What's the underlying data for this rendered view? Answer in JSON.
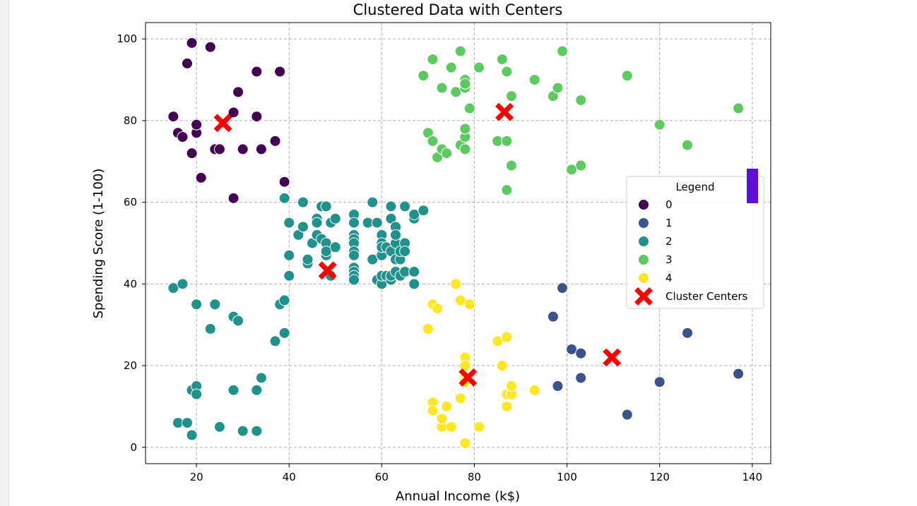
{
  "chart_data": {
    "type": "scatter",
    "title": "Clustered Data with Centers",
    "xlabel": "Annual Income (k$)",
    "ylabel": "Spending Score (1-100)",
    "xlim": [
      9,
      144
    ],
    "ylim": [
      -4,
      104
    ],
    "xticks": [
      20,
      40,
      60,
      80,
      100,
      120,
      140
    ],
    "yticks": [
      0,
      20,
      40,
      60,
      80,
      100
    ],
    "grid": true,
    "legend": {
      "title": "Legend",
      "placement": "center-right"
    },
    "series": [
      {
        "name": "0",
        "color": "#440154",
        "points": [
          [
            15,
            81
          ],
          [
            16,
            77
          ],
          [
            17,
            76
          ],
          [
            18,
            94
          ],
          [
            19,
            72
          ],
          [
            19,
            99
          ],
          [
            20,
            77
          ],
          [
            20,
            79
          ],
          [
            21,
            66
          ],
          [
            23,
            98
          ],
          [
            24,
            73
          ],
          [
            25,
            73
          ],
          [
            28,
            82
          ],
          [
            28,
            61
          ],
          [
            29,
            87
          ],
          [
            30,
            73
          ],
          [
            33,
            92
          ],
          [
            33,
            81
          ],
          [
            34,
            73
          ],
          [
            37,
            75
          ],
          [
            38,
            92
          ],
          [
            39,
            65
          ]
        ]
      },
      {
        "name": "1",
        "color": "#3b528b",
        "points": [
          [
            97,
            32
          ],
          [
            98,
            15
          ],
          [
            99,
            39
          ],
          [
            101,
            24
          ],
          [
            103,
            23
          ],
          [
            103,
            17
          ],
          [
            113,
            8
          ],
          [
            120,
            16
          ],
          [
            126,
            28
          ],
          [
            137,
            18
          ]
        ]
      },
      {
        "name": "2",
        "color": "#21918c",
        "points": [
          [
            15,
            39
          ],
          [
            16,
            6
          ],
          [
            17,
            40
          ],
          [
            18,
            6
          ],
          [
            19,
            3
          ],
          [
            19,
            14
          ],
          [
            20,
            15
          ],
          [
            20,
            13
          ],
          [
            20,
            35
          ],
          [
            23,
            29
          ],
          [
            24,
            35
          ],
          [
            25,
            5
          ],
          [
            28,
            14
          ],
          [
            28,
            32
          ],
          [
            29,
            31
          ],
          [
            30,
            4
          ],
          [
            33,
            4
          ],
          [
            33,
            14
          ],
          [
            34,
            17
          ],
          [
            37,
            26
          ],
          [
            38,
            35
          ],
          [
            39,
            36
          ],
          [
            39,
            28
          ],
          [
            39,
            61
          ],
          [
            40,
            55
          ],
          [
            40,
            47
          ],
          [
            40,
            42
          ],
          [
            42,
            52
          ],
          [
            43,
            60
          ],
          [
            43,
            54
          ],
          [
            44,
            45
          ],
          [
            44,
            46
          ],
          [
            45,
            50
          ],
          [
            46,
            56
          ],
          [
            46,
            55
          ],
          [
            46,
            52
          ],
          [
            47,
            59
          ],
          [
            47,
            51
          ],
          [
            48,
            59
          ],
          [
            48,
            50
          ],
          [
            48,
            47
          ],
          [
            48,
            48
          ],
          [
            49,
            42
          ],
          [
            49,
            55
          ],
          [
            50,
            56
          ],
          [
            50,
            49
          ],
          [
            54,
            57
          ],
          [
            54,
            55
          ],
          [
            54,
            52
          ],
          [
            54,
            51
          ],
          [
            54,
            50
          ],
          [
            54,
            48
          ],
          [
            54,
            47
          ],
          [
            54,
            44
          ],
          [
            54,
            43
          ],
          [
            54,
            42
          ],
          [
            54,
            41
          ],
          [
            57,
            55
          ],
          [
            58,
            60
          ],
          [
            58,
            46
          ],
          [
            59,
            55
          ],
          [
            59,
            41
          ],
          [
            60,
            40
          ],
          [
            60,
            42
          ],
          [
            60,
            52
          ],
          [
            60,
            47
          ],
          [
            60,
            50
          ],
          [
            60,
            49
          ],
          [
            61,
            42
          ],
          [
            61,
            49
          ],
          [
            62,
            41
          ],
          [
            62,
            59
          ],
          [
            62,
            56
          ],
          [
            62,
            48
          ],
          [
            62,
            42
          ],
          [
            63,
            43
          ],
          [
            63,
            54
          ],
          [
            63,
            50
          ],
          [
            63,
            46
          ],
          [
            63,
            52
          ],
          [
            64,
            42
          ],
          [
            64,
            46
          ],
          [
            64,
            48
          ],
          [
            65,
            50
          ],
          [
            65,
            59
          ],
          [
            65,
            43
          ],
          [
            65,
            48
          ],
          [
            67,
            56
          ],
          [
            67,
            40
          ],
          [
            67,
            57
          ],
          [
            67,
            43
          ],
          [
            69,
            58
          ]
        ]
      },
      {
        "name": "3",
        "color": "#5ec962",
        "points": [
          [
            69,
            91
          ],
          [
            70,
            77
          ],
          [
            71,
            95
          ],
          [
            71,
            75
          ],
          [
            72,
            71
          ],
          [
            73,
            88
          ],
          [
            73,
            73
          ],
          [
            74,
            72
          ],
          [
            75,
            93
          ],
          [
            76,
            87
          ],
          [
            77,
            97
          ],
          [
            77,
            74
          ],
          [
            78,
            90
          ],
          [
            78,
            88
          ],
          [
            78,
            76
          ],
          [
            78,
            89
          ],
          [
            78,
            78
          ],
          [
            78,
            73
          ],
          [
            79,
            83
          ],
          [
            81,
            93
          ],
          [
            85,
            75
          ],
          [
            86,
            95
          ],
          [
            87,
            63
          ],
          [
            87,
            75
          ],
          [
            87,
            92
          ],
          [
            88,
            86
          ],
          [
            88,
            69
          ],
          [
            93,
            90
          ],
          [
            97,
            86
          ],
          [
            98,
            88
          ],
          [
            99,
            97
          ],
          [
            101,
            68
          ],
          [
            103,
            85
          ],
          [
            103,
            69
          ],
          [
            113,
            91
          ],
          [
            120,
            79
          ],
          [
            126,
            74
          ],
          [
            137,
            83
          ]
        ]
      },
      {
        "name": "4",
        "color": "#fde725",
        "points": [
          [
            70,
            29
          ],
          [
            71,
            35
          ],
          [
            71,
            11
          ],
          [
            71,
            9
          ],
          [
            72,
            34
          ],
          [
            73,
            5
          ],
          [
            73,
            7
          ],
          [
            74,
            10
          ],
          [
            75,
            5
          ],
          [
            76,
            40
          ],
          [
            77,
            12
          ],
          [
            77,
            36
          ],
          [
            78,
            22
          ],
          [
            78,
            17
          ],
          [
            78,
            20
          ],
          [
            78,
            16
          ],
          [
            78,
            1
          ],
          [
            79,
            35
          ],
          [
            81,
            5
          ],
          [
            85,
            26
          ],
          [
            86,
            20
          ],
          [
            87,
            27
          ],
          [
            87,
            13
          ],
          [
            87,
            10
          ],
          [
            88,
            13
          ],
          [
            88,
            15
          ],
          [
            93,
            14
          ]
        ]
      }
    ],
    "centers": {
      "name": "Cluster Centers",
      "color": "#ff0000",
      "points": [
        [
          25.7,
          79.4
        ],
        [
          109.7,
          22.0
        ],
        [
          48.3,
          43.3
        ],
        [
          86.5,
          82.1
        ],
        [
          78.6,
          17.1
        ]
      ]
    }
  }
}
